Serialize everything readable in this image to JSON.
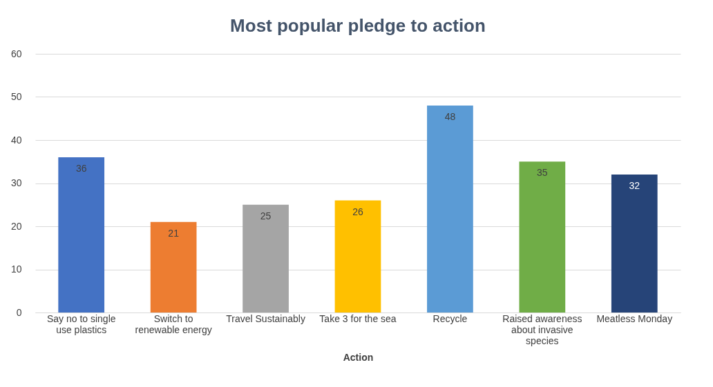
{
  "chart_data": {
    "type": "bar",
    "title": "Most popular pledge to action",
    "xlabel": "Action",
    "categories": [
      "Say no to single use plastics",
      "Switch to renewable energy",
      "Travel Sustainably",
      "Take 3 for the sea",
      "Recycle",
      "Raised awareness about invasive species",
      "Meatless Monday"
    ],
    "values": [
      36,
      21,
      25,
      26,
      48,
      35,
      32
    ],
    "colors": [
      "#4472c4",
      "#ed7d31",
      "#a5a5a5",
      "#ffc000",
      "#5b9bd5",
      "#70ad47",
      "#264478"
    ],
    "ylim": [
      0,
      60
    ],
    "yticks": [
      0,
      10,
      20,
      30,
      40,
      50,
      60
    ],
    "grid": "y",
    "data_labels": true
  }
}
